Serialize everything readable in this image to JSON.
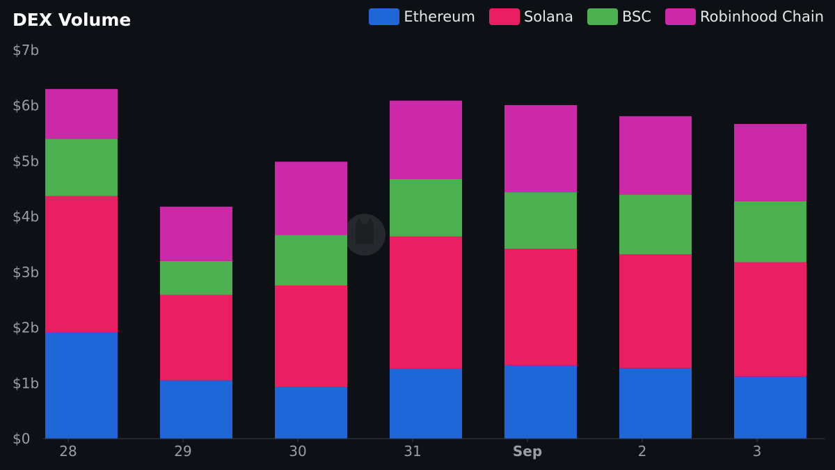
{
  "chart_data": {
    "type": "bar",
    "stacked": true,
    "title": "DEX Volume",
    "categories": [
      "28",
      "29",
      "30",
      "31",
      "Sep",
      "2",
      "3"
    ],
    "bold_categories": [
      "Sep"
    ],
    "series": [
      {
        "name": "Ethereum",
        "color": "#1f67d8",
        "values": [
          1.92,
          1.05,
          0.93,
          1.26,
          1.32,
          1.27,
          1.12
        ]
      },
      {
        "name": "Solana",
        "color": "#e91e63",
        "values": [
          2.45,
          1.54,
          1.83,
          2.38,
          2.1,
          2.05,
          2.06
        ]
      },
      {
        "name": "BSC",
        "color": "#4caf50",
        "values": [
          1.03,
          0.61,
          0.91,
          1.04,
          1.02,
          1.08,
          1.1
        ]
      },
      {
        "name": "Robinhood Chain",
        "color": "#cc29a9",
        "values": [
          0.9,
          0.98,
          1.32,
          1.41,
          1.57,
          1.41,
          1.39
        ]
      }
    ],
    "y_ticks": [
      "$0",
      "$1b",
      "$2b",
      "$3b",
      "$4b",
      "$5b",
      "$6b",
      "$7b"
    ],
    "ylim": [
      0,
      7
    ],
    "legend_position": "top-right",
    "grid": false
  }
}
